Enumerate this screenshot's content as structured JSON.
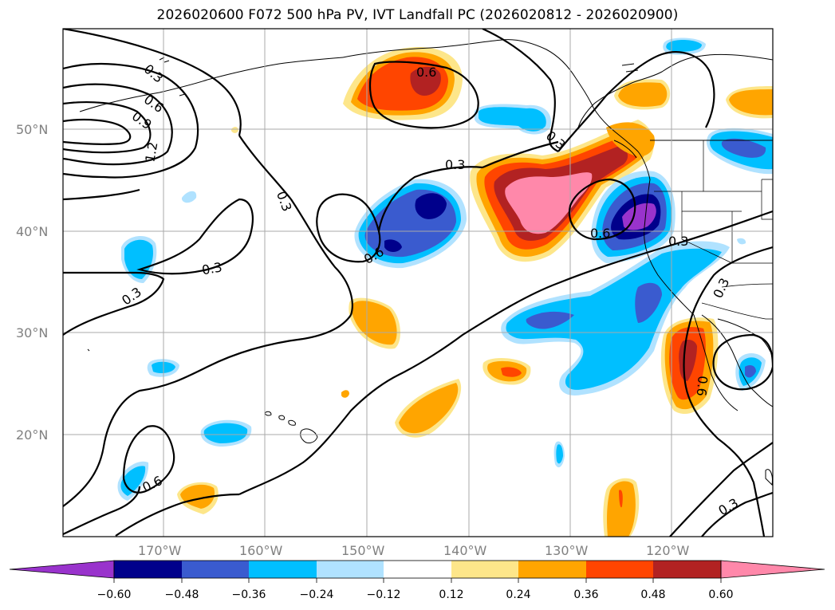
{
  "title": "2026020600 F072 500 hPa PV, IVT Landfall PC (2026020812 - 2026020900)",
  "lat_labels": [
    "50°N",
    "40°N",
    "30°N",
    "20°N"
  ],
  "lon_labels": [
    "170°W",
    "160°W",
    "150°W",
    "140°W",
    "130°W",
    "120°W"
  ],
  "contour_labels": [
    "0.3",
    "0.6",
    "0.9",
    "1.2",
    "0.3",
    "0.3",
    "0.3",
    "0.6",
    "0.6",
    "0.3",
    "0.6",
    "0.3",
    "0.3",
    "0.3",
    "0.6",
    "0.3",
    "0.6"
  ],
  "colorbar": {
    "colors": [
      "#9933cc",
      "#00008b",
      "#3a5bcf",
      "#00bfff",
      "#b0e2ff",
      "#ffffff",
      "#fde68a",
      "#ffa500",
      "#ff4500",
      "#b22222",
      "#ff88aa"
    ],
    "tick_labels": [
      "−0.60",
      "−0.48",
      "−0.36",
      "−0.24",
      "−0.12",
      "0.12",
      "0.24",
      "0.36",
      "0.48",
      "0.60"
    ]
  }
}
